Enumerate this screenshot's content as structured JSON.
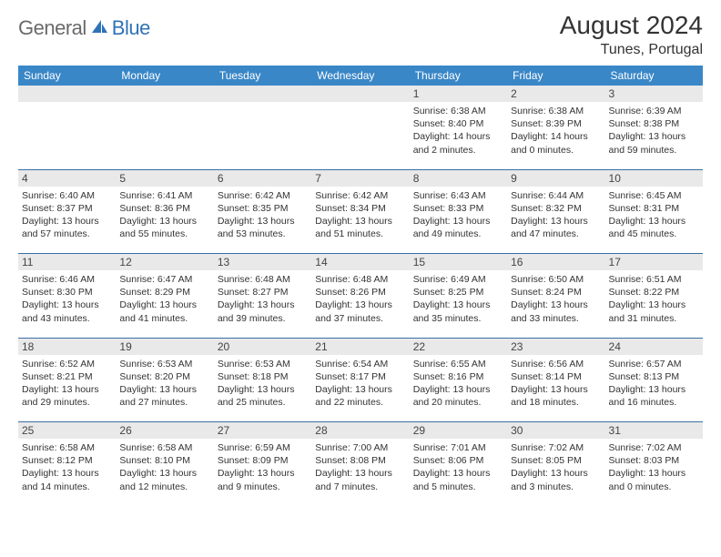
{
  "brand": {
    "text_general": "General",
    "text_blue": "Blue",
    "icon_color": "#2f72b8"
  },
  "header": {
    "month_title": "August 2024",
    "location": "Tunes, Portugal"
  },
  "calendar": {
    "head_bg": "#3a87c7",
    "head_fg": "#ffffff",
    "sep_color": "#3a6ea5",
    "daynum_bg": "#e9e9e9",
    "font_family": "Arial",
    "day_headers": [
      "Sunday",
      "Monday",
      "Tuesday",
      "Wednesday",
      "Thursday",
      "Friday",
      "Saturday"
    ],
    "weeks": [
      [
        {
          "n": "",
          "sunrise": "",
          "sunset": "",
          "daylight": ""
        },
        {
          "n": "",
          "sunrise": "",
          "sunset": "",
          "daylight": ""
        },
        {
          "n": "",
          "sunrise": "",
          "sunset": "",
          "daylight": ""
        },
        {
          "n": "",
          "sunrise": "",
          "sunset": "",
          "daylight": ""
        },
        {
          "n": "1",
          "sunrise": "Sunrise: 6:38 AM",
          "sunset": "Sunset: 8:40 PM",
          "daylight": "Daylight: 14 hours and 2 minutes."
        },
        {
          "n": "2",
          "sunrise": "Sunrise: 6:38 AM",
          "sunset": "Sunset: 8:39 PM",
          "daylight": "Daylight: 14 hours and 0 minutes."
        },
        {
          "n": "3",
          "sunrise": "Sunrise: 6:39 AM",
          "sunset": "Sunset: 8:38 PM",
          "daylight": "Daylight: 13 hours and 59 minutes."
        }
      ],
      [
        {
          "n": "4",
          "sunrise": "Sunrise: 6:40 AM",
          "sunset": "Sunset: 8:37 PM",
          "daylight": "Daylight: 13 hours and 57 minutes."
        },
        {
          "n": "5",
          "sunrise": "Sunrise: 6:41 AM",
          "sunset": "Sunset: 8:36 PM",
          "daylight": "Daylight: 13 hours and 55 minutes."
        },
        {
          "n": "6",
          "sunrise": "Sunrise: 6:42 AM",
          "sunset": "Sunset: 8:35 PM",
          "daylight": "Daylight: 13 hours and 53 minutes."
        },
        {
          "n": "7",
          "sunrise": "Sunrise: 6:42 AM",
          "sunset": "Sunset: 8:34 PM",
          "daylight": "Daylight: 13 hours and 51 minutes."
        },
        {
          "n": "8",
          "sunrise": "Sunrise: 6:43 AM",
          "sunset": "Sunset: 8:33 PM",
          "daylight": "Daylight: 13 hours and 49 minutes."
        },
        {
          "n": "9",
          "sunrise": "Sunrise: 6:44 AM",
          "sunset": "Sunset: 8:32 PM",
          "daylight": "Daylight: 13 hours and 47 minutes."
        },
        {
          "n": "10",
          "sunrise": "Sunrise: 6:45 AM",
          "sunset": "Sunset: 8:31 PM",
          "daylight": "Daylight: 13 hours and 45 minutes."
        }
      ],
      [
        {
          "n": "11",
          "sunrise": "Sunrise: 6:46 AM",
          "sunset": "Sunset: 8:30 PM",
          "daylight": "Daylight: 13 hours and 43 minutes."
        },
        {
          "n": "12",
          "sunrise": "Sunrise: 6:47 AM",
          "sunset": "Sunset: 8:29 PM",
          "daylight": "Daylight: 13 hours and 41 minutes."
        },
        {
          "n": "13",
          "sunrise": "Sunrise: 6:48 AM",
          "sunset": "Sunset: 8:27 PM",
          "daylight": "Daylight: 13 hours and 39 minutes."
        },
        {
          "n": "14",
          "sunrise": "Sunrise: 6:48 AM",
          "sunset": "Sunset: 8:26 PM",
          "daylight": "Daylight: 13 hours and 37 minutes."
        },
        {
          "n": "15",
          "sunrise": "Sunrise: 6:49 AM",
          "sunset": "Sunset: 8:25 PM",
          "daylight": "Daylight: 13 hours and 35 minutes."
        },
        {
          "n": "16",
          "sunrise": "Sunrise: 6:50 AM",
          "sunset": "Sunset: 8:24 PM",
          "daylight": "Daylight: 13 hours and 33 minutes."
        },
        {
          "n": "17",
          "sunrise": "Sunrise: 6:51 AM",
          "sunset": "Sunset: 8:22 PM",
          "daylight": "Daylight: 13 hours and 31 minutes."
        }
      ],
      [
        {
          "n": "18",
          "sunrise": "Sunrise: 6:52 AM",
          "sunset": "Sunset: 8:21 PM",
          "daylight": "Daylight: 13 hours and 29 minutes."
        },
        {
          "n": "19",
          "sunrise": "Sunrise: 6:53 AM",
          "sunset": "Sunset: 8:20 PM",
          "daylight": "Daylight: 13 hours and 27 minutes."
        },
        {
          "n": "20",
          "sunrise": "Sunrise: 6:53 AM",
          "sunset": "Sunset: 8:18 PM",
          "daylight": "Daylight: 13 hours and 25 minutes."
        },
        {
          "n": "21",
          "sunrise": "Sunrise: 6:54 AM",
          "sunset": "Sunset: 8:17 PM",
          "daylight": "Daylight: 13 hours and 22 minutes."
        },
        {
          "n": "22",
          "sunrise": "Sunrise: 6:55 AM",
          "sunset": "Sunset: 8:16 PM",
          "daylight": "Daylight: 13 hours and 20 minutes."
        },
        {
          "n": "23",
          "sunrise": "Sunrise: 6:56 AM",
          "sunset": "Sunset: 8:14 PM",
          "daylight": "Daylight: 13 hours and 18 minutes."
        },
        {
          "n": "24",
          "sunrise": "Sunrise: 6:57 AM",
          "sunset": "Sunset: 8:13 PM",
          "daylight": "Daylight: 13 hours and 16 minutes."
        }
      ],
      [
        {
          "n": "25",
          "sunrise": "Sunrise: 6:58 AM",
          "sunset": "Sunset: 8:12 PM",
          "daylight": "Daylight: 13 hours and 14 minutes."
        },
        {
          "n": "26",
          "sunrise": "Sunrise: 6:58 AM",
          "sunset": "Sunset: 8:10 PM",
          "daylight": "Daylight: 13 hours and 12 minutes."
        },
        {
          "n": "27",
          "sunrise": "Sunrise: 6:59 AM",
          "sunset": "Sunset: 8:09 PM",
          "daylight": "Daylight: 13 hours and 9 minutes."
        },
        {
          "n": "28",
          "sunrise": "Sunrise: 7:00 AM",
          "sunset": "Sunset: 8:08 PM",
          "daylight": "Daylight: 13 hours and 7 minutes."
        },
        {
          "n": "29",
          "sunrise": "Sunrise: 7:01 AM",
          "sunset": "Sunset: 8:06 PM",
          "daylight": "Daylight: 13 hours and 5 minutes."
        },
        {
          "n": "30",
          "sunrise": "Sunrise: 7:02 AM",
          "sunset": "Sunset: 8:05 PM",
          "daylight": "Daylight: 13 hours and 3 minutes."
        },
        {
          "n": "31",
          "sunrise": "Sunrise: 7:02 AM",
          "sunset": "Sunset: 8:03 PM",
          "daylight": "Daylight: 13 hours and 0 minutes."
        }
      ]
    ]
  }
}
